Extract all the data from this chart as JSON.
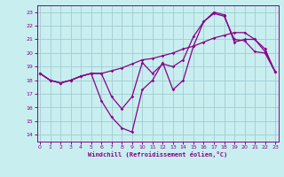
{
  "xlabel": "Windchill (Refroidissement éolien,°C)",
  "bg_color": "#c8eef0",
  "grid_color": "#a0ccd0",
  "line_color": "#880088",
  "x_ticks": [
    0,
    1,
    2,
    3,
    4,
    5,
    6,
    7,
    8,
    9,
    10,
    11,
    12,
    13,
    14,
    15,
    16,
    17,
    18,
    19,
    20,
    21,
    22,
    23
  ],
  "y_ticks": [
    14,
    15,
    16,
    17,
    18,
    19,
    20,
    21,
    22,
    23
  ],
  "xlim": [
    -0.3,
    23.3
  ],
  "ylim": [
    13.5,
    23.5
  ],
  "line1_x": [
    0,
    1,
    2,
    3,
    4,
    5,
    6,
    7,
    8,
    9,
    10,
    11,
    12,
    13,
    14,
    15,
    16,
    17,
    18,
    19,
    20,
    21,
    22,
    23
  ],
  "line1_y": [
    18.5,
    18.0,
    17.8,
    18.0,
    18.3,
    18.5,
    16.5,
    15.3,
    14.5,
    14.2,
    17.3,
    18.0,
    19.3,
    17.3,
    18.0,
    20.5,
    22.3,
    22.9,
    22.7,
    21.0,
    20.9,
    20.1,
    20.0,
    18.6
  ],
  "line2_x": [
    0,
    1,
    2,
    3,
    4,
    5,
    6,
    7,
    8,
    9,
    10,
    11,
    12,
    13,
    14,
    15,
    16,
    17,
    18,
    19,
    20,
    21,
    22,
    23
  ],
  "line2_y": [
    18.5,
    18.0,
    17.8,
    18.0,
    18.3,
    18.5,
    18.5,
    18.7,
    18.9,
    19.2,
    19.5,
    19.6,
    19.8,
    20.0,
    20.3,
    20.5,
    20.8,
    21.1,
    21.3,
    21.5,
    21.5,
    21.0,
    20.3,
    18.6
  ],
  "line3_x": [
    0,
    1,
    2,
    3,
    4,
    5,
    6,
    7,
    8,
    9,
    10,
    11,
    12,
    13,
    14,
    15,
    16,
    17,
    18,
    19,
    20,
    21,
    22,
    23
  ],
  "line3_y": [
    18.5,
    18.0,
    17.8,
    18.0,
    18.3,
    18.5,
    18.5,
    16.8,
    15.9,
    16.8,
    19.3,
    18.5,
    19.2,
    19.0,
    19.5,
    21.2,
    22.3,
    23.0,
    22.8,
    20.8,
    21.0,
    21.0,
    20.1,
    18.6
  ]
}
